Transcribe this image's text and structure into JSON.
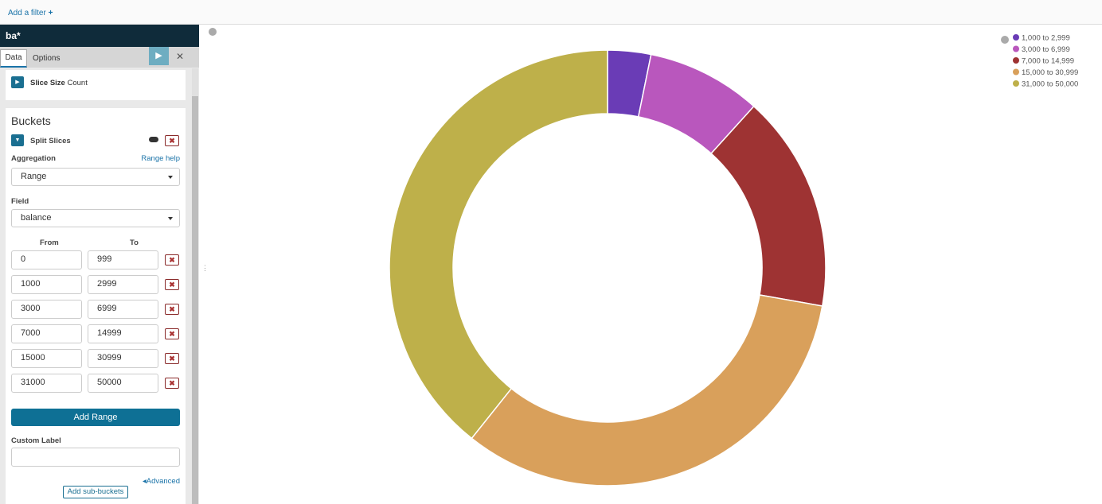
{
  "ui": {
    "filter_bar": {
      "add_filter": "Add a filter"
    },
    "sidebar": {
      "index": "ba*",
      "tabs": [
        "Data",
        "Options"
      ],
      "metrics": {
        "label": "Slice Size",
        "value": "Count"
      },
      "buckets": {
        "title": "Buckets",
        "bucket_type": "Split Slices",
        "aggregation_label": "Aggregation",
        "help_link": "Range help",
        "aggregation": "Range",
        "field_label": "Field",
        "field": "balance",
        "from_label": "From",
        "to_label": "To",
        "ranges": [
          [
            "0",
            "999"
          ],
          [
            "1000",
            "2999"
          ],
          [
            "3000",
            "6999"
          ],
          [
            "7000",
            "14999"
          ],
          [
            "15000",
            "30999"
          ],
          [
            "31000",
            "50000"
          ]
        ],
        "add_range": "Add Range",
        "custom_label": "Custom Label",
        "advanced": "Advanced",
        "add_sub_buckets": "Add sub-buckets"
      }
    }
  },
  "chart_data": {
    "type": "pie",
    "donut": true,
    "categories": [
      "1,000 to 2,999",
      "3,000 to 6,999",
      "7,000 to 14,999",
      "15,000 to 30,999",
      "31,000 to 50,000"
    ],
    "values": [
      3.2,
      8.5,
      16.1,
      32.9,
      39.3
    ],
    "colors": [
      "#6a3cb6",
      "#b957bd",
      "#9e3333",
      "#d9a05b",
      "#beb04a"
    ]
  }
}
